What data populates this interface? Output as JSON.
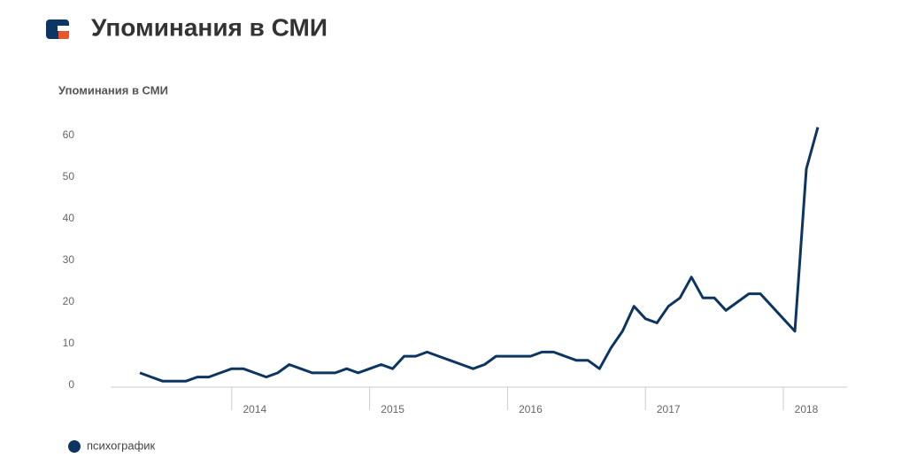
{
  "chart_data": {
    "type": "line",
    "title": "Упоминания в СМИ",
    "y_label": "Упоминания в СМИ",
    "categories": [
      null,
      null,
      null,
      null,
      null,
      null,
      null,
      null,
      null,
      null,
      "2014",
      null,
      null,
      null,
      null,
      null,
      null,
      null,
      null,
      null,
      null,
      null,
      "2015",
      null,
      null,
      null,
      null,
      null,
      null,
      null,
      null,
      null,
      null,
      null,
      "2016",
      null,
      null,
      null,
      null,
      null,
      null,
      null,
      null,
      null,
      null,
      null,
      "2017",
      null,
      null,
      null,
      null,
      null,
      null,
      null,
      null,
      null,
      null,
      null,
      "2018",
      null
    ],
    "series": [
      {
        "name": "психографик",
        "color": "#0d3561",
        "values": [
          3,
          2,
          1,
          1,
          1,
          2,
          2,
          3,
          4,
          4,
          3,
          2,
          3,
          5,
          4,
          3,
          3,
          3,
          4,
          3,
          4,
          5,
          4,
          7,
          7,
          8,
          7,
          6,
          5,
          4,
          5,
          7,
          7,
          7,
          7,
          8,
          8,
          7,
          6,
          6,
          4,
          9,
          13,
          19,
          16,
          15,
          19,
          21,
          26,
          21,
          21,
          18,
          20,
          22,
          22,
          19,
          16,
          13,
          52,
          62
        ]
      }
    ],
    "ylim": [
      0,
      62
    ],
    "yticks": [
      0,
      10,
      20,
      30,
      40,
      50,
      60
    ],
    "legend": "bottom-left"
  }
}
